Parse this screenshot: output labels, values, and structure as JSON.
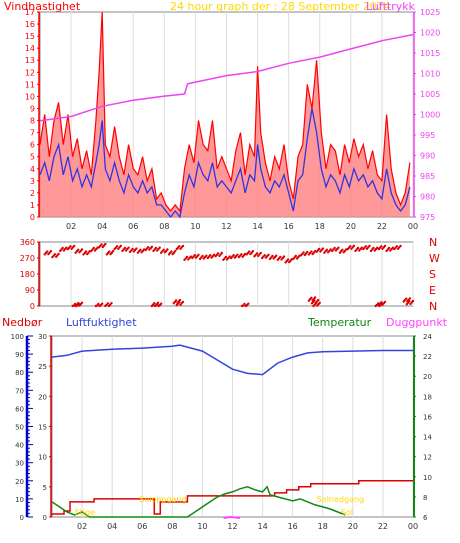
{
  "header": {
    "left_label": "Vindhastighet",
    "title": "24 hour graph der : 28 September 2024",
    "right_label": "Lufttrykk"
  },
  "colors": {
    "wind": "#ff0000",
    "wind_fill": "#ff8080",
    "gust_avg": "#3333dd",
    "pressure": "#ee44ee",
    "direction": "#dd0000",
    "humidity": "#3344dd",
    "temperature": "#118811",
    "rain": "#dd0000",
    "dew": "#ff44ff",
    "title": "#ffd700",
    "axis_right_bottom": "#118811",
    "axis_left_rain": "#0000cc"
  },
  "chart_data": [
    {
      "type": "line",
      "name": "wind-pressure",
      "x_ticks": [
        "02",
        "04",
        "06",
        "08",
        "10",
        "12",
        "14",
        "16",
        "18",
        "20",
        "22",
        "00"
      ],
      "y_left_ticks": [
        "0",
        "1",
        "2",
        "3",
        "4",
        "5",
        "6",
        "7",
        "8",
        "9",
        "10",
        "11",
        "12",
        "13",
        "14",
        "15",
        "16",
        "17"
      ],
      "y_left_range": [
        0,
        17
      ],
      "y_right_ticks": [
        "975",
        "980",
        "985",
        "990",
        "995",
        "1000",
        "1005",
        "1010",
        "1015",
        "1020",
        "1025"
      ],
      "y_right_range": [
        975,
        1025
      ],
      "series": [
        {
          "key": "wind",
          "x": [
            0.0,
            0.3,
            0.6,
            0.9,
            1.2,
            1.5,
            1.8,
            2.1,
            2.4,
            2.7,
            3.0,
            3.3,
            3.6,
            3.8,
            4.0,
            4.2,
            4.5,
            4.8,
            5.1,
            5.4,
            5.7,
            6.0,
            6.3,
            6.6,
            6.9,
            7.2,
            7.5,
            7.8,
            8.1,
            8.4,
            8.7,
            9.0,
            9.3,
            9.6,
            9.9,
            10.2,
            10.5,
            10.8,
            11.1,
            11.4,
            11.7,
            12.0,
            12.3,
            12.6,
            12.9,
            13.2,
            13.5,
            13.8,
            14.0,
            14.2,
            14.5,
            14.8,
            15.1,
            15.4,
            15.7,
            16.0,
            16.3,
            16.6,
            16.9,
            17.2,
            17.5,
            17.8,
            18.1,
            18.4,
            18.7,
            19.0,
            19.3,
            19.6,
            19.9,
            20.2,
            20.5,
            20.8,
            21.1,
            21.4,
            21.7,
            22.0,
            22.3,
            22.6,
            22.9,
            23.2,
            23.5,
            23.8
          ],
          "values": [
            6,
            8.5,
            5,
            8,
            9.5,
            6,
            8.5,
            5,
            6.5,
            4,
            5.5,
            3.5,
            8,
            12,
            17,
            6,
            5,
            7.5,
            5,
            3.5,
            6,
            4,
            3.5,
            5,
            3,
            4,
            1.5,
            2,
            1,
            0.5,
            1,
            0.5,
            4,
            6,
            4.5,
            8,
            6,
            5.5,
            8,
            4,
            5,
            4,
            3,
            5.5,
            7,
            3.5,
            6,
            5,
            12.5,
            7,
            4.5,
            3,
            5,
            4,
            6,
            3,
            1.5,
            5,
            6,
            11,
            9,
            13,
            7,
            4,
            6,
            5.5,
            3.5,
            6,
            4.5,
            6.5,
            5,
            6,
            4,
            5.5,
            3.5,
            3,
            8.5,
            4,
            2,
            1,
            2,
            4.5
          ]
        },
        {
          "key": "average",
          "x": [
            0.0,
            0.3,
            0.6,
            0.9,
            1.2,
            1.5,
            1.8,
            2.1,
            2.4,
            2.7,
            3.0,
            3.3,
            3.6,
            3.8,
            4.0,
            4.2,
            4.5,
            4.8,
            5.1,
            5.4,
            5.7,
            6.0,
            6.3,
            6.6,
            6.9,
            7.2,
            7.5,
            7.8,
            8.1,
            8.4,
            8.7,
            9.0,
            9.3,
            9.6,
            9.9,
            10.2,
            10.5,
            10.8,
            11.1,
            11.4,
            11.7,
            12.0,
            12.3,
            12.6,
            12.9,
            13.2,
            13.5,
            13.8,
            14.0,
            14.2,
            14.5,
            14.8,
            15.1,
            15.4,
            15.7,
            16.0,
            16.3,
            16.6,
            16.9,
            17.2,
            17.5,
            17.8,
            18.1,
            18.4,
            18.7,
            19.0,
            19.3,
            19.6,
            19.9,
            20.2,
            20.5,
            20.8,
            21.1,
            21.4,
            21.7,
            22.0,
            22.3,
            22.6,
            22.9,
            23.2,
            23.5,
            23.8
          ],
          "values": [
            3.5,
            4.5,
            3,
            5,
            6,
            3.5,
            5,
            3,
            4,
            2.5,
            3.5,
            2.5,
            4.5,
            6,
            8,
            4,
            3,
            4.5,
            3,
            2,
            3.5,
            2.5,
            2,
            3,
            2,
            2.5,
            1,
            1,
            0.5,
            0,
            0.5,
            0,
            2,
            3.5,
            2.5,
            4.5,
            3.5,
            3,
            4.5,
            2.5,
            3,
            2.5,
            2,
            3,
            4,
            2,
            3.5,
            3,
            6,
            4,
            2.5,
            2,
            3,
            2.5,
            3.5,
            2,
            0.5,
            3,
            3.5,
            6.5,
            9,
            7,
            4,
            2.5,
            3.5,
            3,
            2,
            3.5,
            2.5,
            4,
            3,
            3.5,
            2.5,
            3,
            2,
            1.5,
            4,
            2,
            1,
            0.5,
            1,
            2.5
          ]
        },
        {
          "key": "pressure",
          "x": [
            0,
            2,
            4,
            6,
            8,
            9.3,
            9.5,
            12,
            14,
            16,
            18,
            20,
            22,
            24
          ],
          "values": [
            998.5,
            999.5,
            1002,
            1003.5,
            1004.5,
            1005,
            1007.5,
            1009.5,
            1010.5,
            1012.5,
            1014,
            1016,
            1018,
            1019.5
          ]
        }
      ]
    },
    {
      "type": "scatter",
      "name": "wind-direction",
      "y_left_ticks": [
        "0",
        "90",
        "180",
        "270",
        "360"
      ],
      "y_range": [
        0,
        360
      ],
      "y_right_labels": [
        "N",
        "W",
        "S",
        "E",
        "N"
      ],
      "series": [
        {
          "key": "direction",
          "x": [
            0.5,
            1,
            1.5,
            2,
            2.5,
            3,
            3.5,
            4,
            4.5,
            5,
            5.5,
            6,
            6.5,
            7,
            7.5,
            8,
            8.5,
            9,
            9.5,
            10,
            10.5,
            11,
            11.5,
            12,
            12.5,
            13,
            13.5,
            14,
            14.5,
            15,
            15.5,
            16,
            16.5,
            17,
            17.5,
            18,
            18.5,
            19,
            19.5,
            20,
            20.5,
            21,
            21.5,
            22,
            22.5,
            23
          ],
          "values": [
            300,
            285,
            320,
            330,
            310,
            300,
            320,
            340,
            300,
            330,
            320,
            315,
            310,
            325,
            320,
            310,
            300,
            330,
            270,
            280,
            275,
            280,
            290,
            270,
            280,
            285,
            300,
            290,
            280,
            275,
            270,
            255,
            275,
            295,
            300,
            315,
            310,
            320,
            310,
            330,
            320,
            330,
            320,
            330,
            320,
            330
          ]
        },
        {
          "key": "direction-north",
          "x": [
            2.3,
            2.5,
            3.8,
            4.4,
            7.4,
            7.6,
            8.8,
            9.0,
            13.2,
            17.5,
            17.7,
            17.8,
            21.8,
            22.0,
            23.6,
            23.8
          ],
          "values": [
            5,
            10,
            5,
            8,
            10,
            5,
            25,
            15,
            5,
            40,
            25,
            10,
            8,
            15,
            35,
            20
          ]
        }
      ]
    },
    {
      "type": "line",
      "name": "rain-humidity-temperature",
      "legend": [
        "Nedbør",
        "Luftfuktighet",
        "Temperatur",
        "Duggpunkt"
      ],
      "y_rain_ticks": [
        "0",
        "10",
        "20",
        "30",
        "40",
        "50",
        "60",
        "70",
        "80",
        "90",
        "100"
      ],
      "y_hum_ticks": [
        "0",
        "5",
        "10",
        "15",
        "20",
        "25",
        "30"
      ],
      "y_temp_ticks": [
        "6",
        "8",
        "10",
        "12",
        "14",
        "16",
        "18",
        "20",
        "22",
        "24"
      ],
      "y_hum_range": [
        0,
        30
      ],
      "y_temp_range": [
        6,
        24
      ],
      "x_ticks": [
        "02",
        "04",
        "06",
        "08",
        "10",
        "12",
        "14",
        "16",
        "18",
        "20",
        "22",
        "00"
      ],
      "annotations": {
        "low_left": "Stige",
        "sunrise": "Soloppgang",
        "sunset": "Solnedgang",
        "low_right": "Sol"
      },
      "series": [
        {
          "key": "humidity",
          "x": [
            0,
            1,
            2,
            4,
            6,
            8,
            8.5,
            10,
            11,
            12,
            13,
            14,
            15,
            16,
            17,
            18,
            20,
            22,
            24
          ],
          "values": [
            26.5,
            26.8,
            27.5,
            27.8,
            28,
            28.3,
            28.5,
            27.5,
            26,
            24.5,
            23.8,
            23.6,
            25.5,
            26.5,
            27.2,
            27.4,
            27.5,
            27.6,
            27.6
          ]
        },
        {
          "key": "rain",
          "x": [
            0,
            0.8,
            0.8,
            1.2,
            1.2,
            2.8,
            2.8,
            6.8,
            6.8,
            7.2,
            7.2,
            9.0,
            9.0,
            14.8,
            14.8,
            15.6,
            15.6,
            16.4,
            16.4,
            17.2,
            17.2,
            20.4,
            20.4,
            24
          ],
          "values": [
            0.5,
            0.5,
            1,
            1,
            2.5,
            2.5,
            3,
            3,
            0.5,
            0.5,
            2.5,
            2.5,
            3.5,
            3.5,
            4,
            4,
            4.5,
            4.5,
            5,
            5,
            5.5,
            5.5,
            6,
            6
          ]
        },
        {
          "key": "temperature",
          "x": [
            0,
            0.5,
            1,
            1.5,
            2,
            2.5,
            9,
            9.5,
            10,
            10.5,
            11,
            11.5,
            12,
            12.5,
            13,
            13.5,
            14,
            14.3,
            14.5,
            15,
            15.5,
            16,
            16.5,
            17,
            17.5,
            18,
            18.5,
            19,
            19.5
          ],
          "values": [
            7.5,
            7,
            6.5,
            6.2,
            6.5,
            6,
            6,
            6.5,
            7,
            7.5,
            8,
            8.3,
            8.5,
            8.8,
            9,
            8.7,
            8.5,
            9,
            8.2,
            8,
            7.8,
            7.6,
            7.8,
            7.5,
            7.2,
            7,
            6.8,
            6.5,
            6.2
          ]
        },
        {
          "key": "dew",
          "x": [
            11.4,
            11.8,
            12.2,
            12.5
          ],
          "values": [
            5.9,
            6.0,
            5.95,
            5.9
          ]
        }
      ]
    }
  ]
}
